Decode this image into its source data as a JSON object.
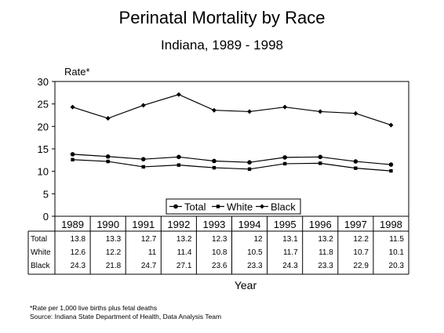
{
  "chart_data": {
    "type": "line",
    "title": "Perinatal Mortality by Race",
    "subtitle": "Indiana, 1989 - 1998",
    "ylabel": "Rate*",
    "xlabel": "Year",
    "ylim": [
      0,
      30
    ],
    "yticks": [
      "0",
      "5",
      "10",
      "15",
      "20",
      "25",
      "30"
    ],
    "categories": [
      "1989",
      "1990",
      "1991",
      "1992",
      "1993",
      "1994",
      "1995",
      "1996",
      "1997",
      "1998"
    ],
    "legend_position": "bottom-center",
    "grid": false,
    "series": [
      {
        "name": "Total",
        "marker": "circle",
        "values": [
          13.8,
          13.3,
          12.7,
          13.2,
          12.3,
          12,
          13.1,
          13.2,
          12.2,
          11.5
        ],
        "labels": [
          "13.8",
          "13.3",
          "12.7",
          "13.2",
          "12.3",
          "12",
          "13.1",
          "13.2",
          "12.2",
          "11.5"
        ]
      },
      {
        "name": "White",
        "marker": "square",
        "values": [
          12.6,
          12.2,
          11,
          11.4,
          10.8,
          10.5,
          11.7,
          11.8,
          10.7,
          10.1
        ],
        "labels": [
          "12.6",
          "12.2",
          "11",
          "11.4",
          "10.8",
          "10.5",
          "11.7",
          "11.8",
          "10.7",
          "10.1"
        ]
      },
      {
        "name": "Black",
        "marker": "diamond",
        "values": [
          24.3,
          21.8,
          24.7,
          27.1,
          23.6,
          23.3,
          24.3,
          23.3,
          22.9,
          20.3
        ],
        "labels": [
          "24.3",
          "21.8",
          "24.7",
          "27.1",
          "23.6",
          "23.3",
          "24.3",
          "23.3",
          "22.9",
          "20.3"
        ]
      }
    ]
  },
  "footnotes": {
    "note": "*Rate per 1,000 live births plus fetal deaths",
    "source": "Source:  Indiana State Department of Health, Data Analysis Team"
  },
  "colors": {
    "line": "#000000",
    "background": "#ffffff"
  }
}
